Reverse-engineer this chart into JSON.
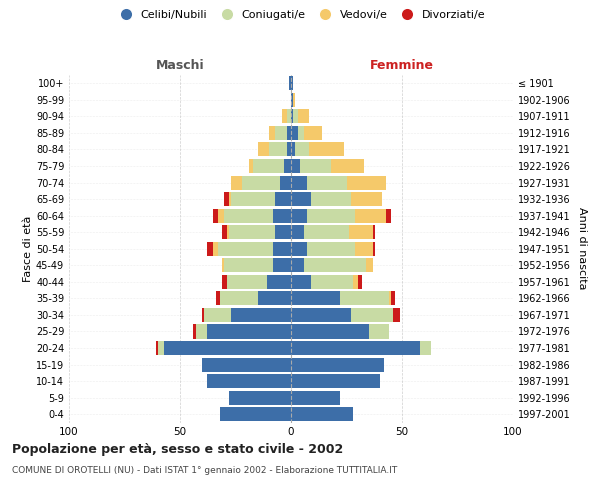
{
  "age_groups": [
    "100+",
    "95-99",
    "90-94",
    "85-89",
    "80-84",
    "75-79",
    "70-74",
    "65-69",
    "60-64",
    "55-59",
    "50-54",
    "45-49",
    "40-44",
    "35-39",
    "30-34",
    "25-29",
    "20-24",
    "15-19",
    "10-14",
    "5-9",
    "0-4"
  ],
  "birth_years": [
    "≤ 1901",
    "1902-1906",
    "1907-1911",
    "1912-1916",
    "1917-1921",
    "1922-1926",
    "1927-1931",
    "1932-1936",
    "1937-1941",
    "1942-1946",
    "1947-1951",
    "1952-1956",
    "1957-1961",
    "1962-1966",
    "1967-1971",
    "1972-1976",
    "1977-1981",
    "1982-1986",
    "1987-1991",
    "1992-1996",
    "1997-2001"
  ],
  "male": {
    "celibi": [
      1,
      0,
      0,
      2,
      2,
      3,
      5,
      7,
      8,
      7,
      8,
      8,
      11,
      15,
      27,
      38,
      57,
      40,
      38,
      28,
      32
    ],
    "coniugati": [
      0,
      0,
      2,
      5,
      8,
      14,
      17,
      20,
      22,
      21,
      25,
      22,
      18,
      17,
      12,
      5,
      3,
      0,
      0,
      0,
      0
    ],
    "vedovi": [
      0,
      0,
      2,
      3,
      5,
      2,
      5,
      1,
      3,
      1,
      2,
      1,
      0,
      0,
      0,
      0,
      0,
      0,
      0,
      0,
      0
    ],
    "divorziati": [
      0,
      0,
      0,
      0,
      0,
      0,
      0,
      2,
      2,
      2,
      3,
      0,
      2,
      2,
      1,
      1,
      1,
      0,
      0,
      0,
      0
    ]
  },
  "female": {
    "nubili": [
      1,
      1,
      1,
      3,
      2,
      4,
      7,
      9,
      7,
      6,
      7,
      6,
      9,
      22,
      27,
      35,
      58,
      42,
      40,
      22,
      28
    ],
    "coniugate": [
      0,
      0,
      2,
      3,
      6,
      14,
      18,
      18,
      22,
      20,
      22,
      28,
      19,
      22,
      19,
      9,
      5,
      0,
      0,
      0,
      0
    ],
    "vedove": [
      0,
      1,
      5,
      8,
      16,
      15,
      18,
      14,
      14,
      11,
      8,
      3,
      2,
      1,
      0,
      0,
      0,
      0,
      0,
      0,
      0
    ],
    "divorziate": [
      0,
      0,
      0,
      0,
      0,
      0,
      0,
      0,
      2,
      1,
      1,
      0,
      2,
      2,
      3,
      0,
      0,
      0,
      0,
      0,
      0
    ]
  },
  "colors": {
    "celibi": "#3d6ea8",
    "coniugati": "#c8dba4",
    "vedovi": "#f5c96a",
    "divorziati": "#cc1a1a"
  },
  "xlim": 100,
  "title": "Popolazione per età, sesso e stato civile - 2002",
  "subtitle": "COMUNE DI OROTELLI (NU) - Dati ISTAT 1° gennaio 2002 - Elaborazione TUTTITALIA.IT",
  "ylabel_left": "Fasce di età",
  "ylabel_right": "Anni di nascita",
  "xlabel_left": "Maschi",
  "xlabel_right": "Femmine",
  "background_color": "#ffffff",
  "grid_color": "#bbbbbb",
  "bar_height": 0.85
}
